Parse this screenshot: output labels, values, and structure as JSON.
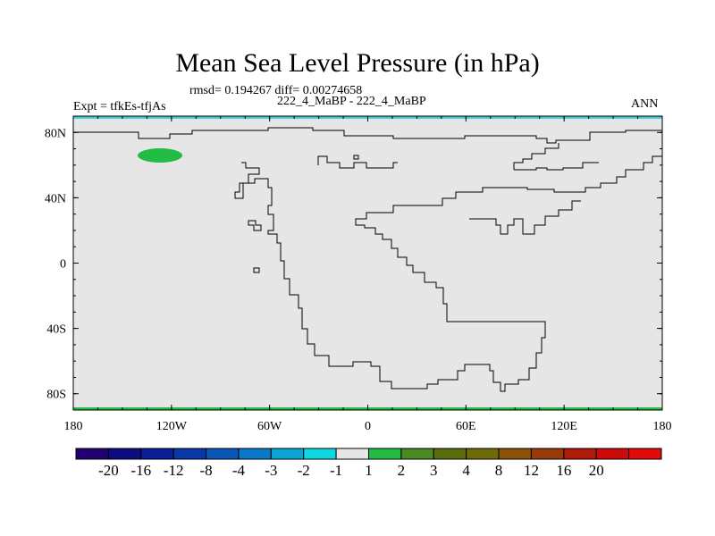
{
  "title": "Mean Sea Level Pressure (in hPa)",
  "stats": "rmsd= 0.194267 diff= 0.00274658",
  "experiment": "Expt = tfkEs-tfjAs",
  "run_label": "222_4_MaBP - 222_4_MaBP",
  "season": "ANN",
  "map_data": {
    "projection": "cylindrical-equidistant",
    "lon_range": [
      -180,
      180
    ],
    "lat_range": [
      -90,
      90
    ],
    "background_value_color": "#e6e6e6",
    "lat_ticks": [
      "80N",
      "40N",
      "0",
      "40S",
      "80S"
    ],
    "lon_ticks": [
      "180",
      "120W",
      "60W",
      "0",
      "60E",
      "120E",
      "180"
    ],
    "features": [
      {
        "name": "positive-anomaly-patch",
        "lon": -130,
        "lat": 66,
        "value_band": "1 to 2",
        "color": "#22bb44"
      },
      {
        "name": "north-polar-band",
        "lat_min": 86,
        "lat_max": 90,
        "color": "#44d0d0"
      },
      {
        "name": "south-polar-band",
        "lat_min": -90,
        "lat_max": -88,
        "color": "#22bb44"
      }
    ]
  },
  "colorbar": {
    "colors": [
      "#230070",
      "#0c0c80",
      "#0a1e96",
      "#0a38a6",
      "#0a56b6",
      "#0a78c8",
      "#0aa6d8",
      "#10d8e0",
      "#e6e6e6",
      "#22bb44",
      "#4a8a22",
      "#5a6e10",
      "#6e6a08",
      "#8a5206",
      "#9a3a0a",
      "#b01a0a",
      "#cc0a0a",
      "#e00a0a"
    ],
    "labels": [
      "-20",
      "-16",
      "-12",
      "-8",
      "-4",
      "-3",
      "-2",
      "-1",
      "1",
      "2",
      "3",
      "4",
      "8",
      "12",
      "16",
      "20"
    ]
  }
}
